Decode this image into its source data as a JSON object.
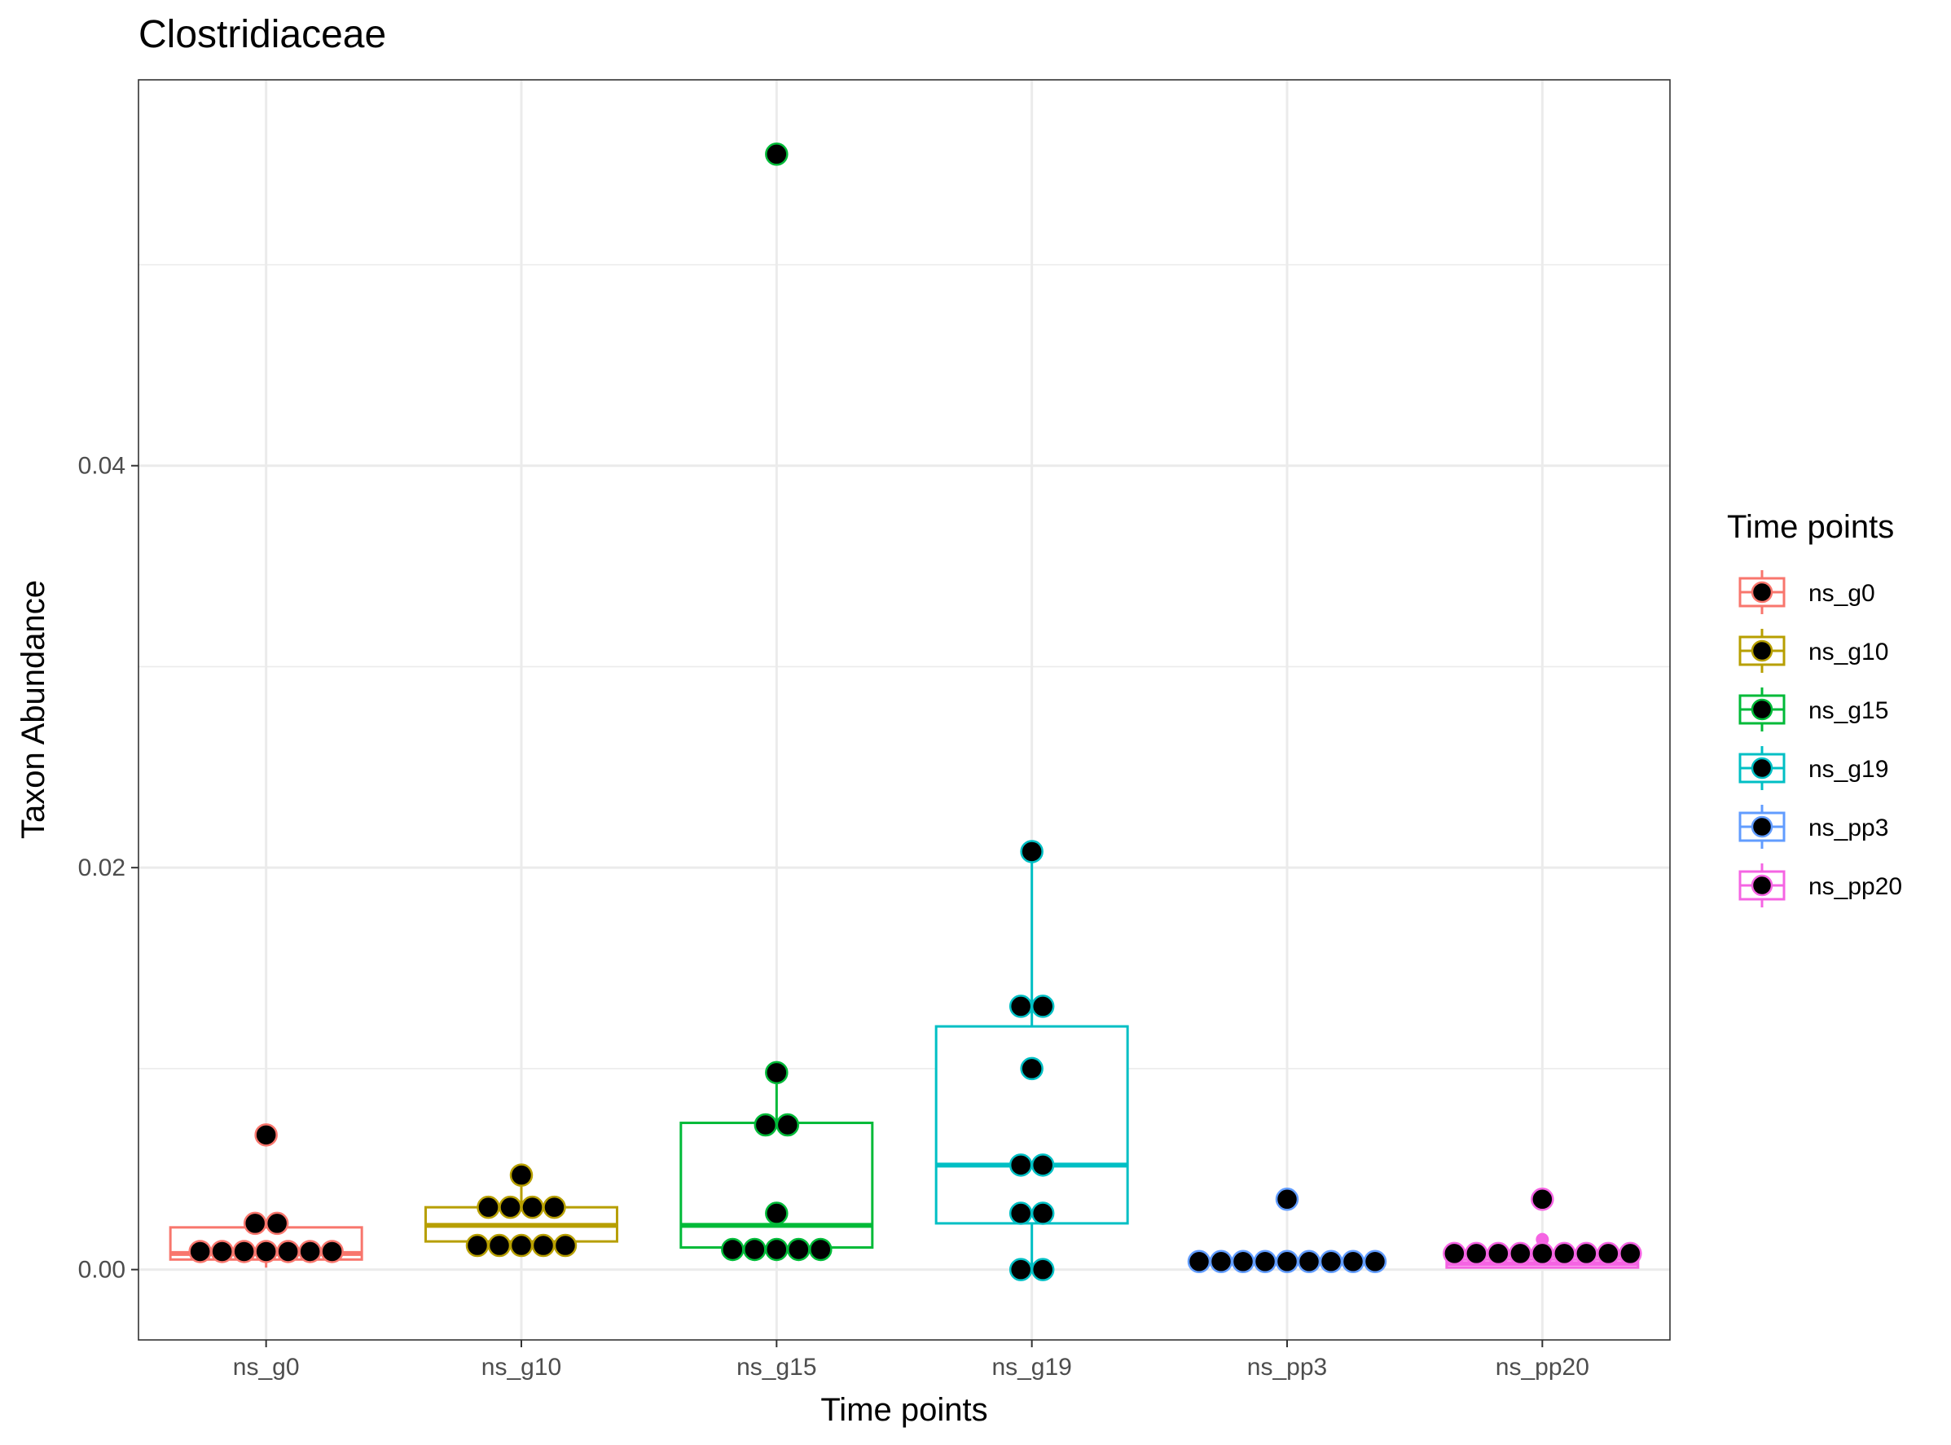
{
  "chart_data": {
    "type": "boxplot",
    "title": "Clostridiaceae",
    "xlabel": "Time points",
    "ylabel": "Taxon Abundance",
    "ylim": [
      -0.0035,
      0.0592
    ],
    "y_ticks": [
      0.0,
      0.02,
      0.04
    ],
    "y_tick_labels": [
      "0.00",
      "0.02",
      "0.04"
    ],
    "grid": true,
    "legend": {
      "title": "Time points",
      "position": "right"
    },
    "categories": [
      "ns_g0",
      "ns_g10",
      "ns_g15",
      "ns_g19",
      "ns_pp3",
      "ns_pp20"
    ],
    "series": [
      {
        "name": "ns_g0",
        "color": "#F8766D",
        "box": {
          "lower_whisker": 0.0001,
          "q1": 0.0005,
          "median": 0.0008,
          "q3": 0.0021,
          "upper_whisker": 0.0024
        },
        "outliers": [
          0.0067
        ],
        "points": [
          0.0009,
          0.0009,
          0.0009,
          0.0009,
          0.0009,
          0.0009,
          0.0009,
          0.0023,
          0.0023,
          0.0067
        ]
      },
      {
        "name": "ns_g10",
        "color": "#B79F00",
        "box": {
          "lower_whisker": 0.0011,
          "q1": 0.0014,
          "median": 0.0022,
          "q3": 0.0031,
          "upper_whisker": 0.0047
        },
        "outliers": [],
        "points": [
          0.0012,
          0.0012,
          0.0012,
          0.0012,
          0.0012,
          0.0031,
          0.0031,
          0.0031,
          0.0031,
          0.0047
        ]
      },
      {
        "name": "ns_g15",
        "color": "#00BA38",
        "box": {
          "lower_whisker": 0.0009,
          "q1": 0.0011,
          "median": 0.0022,
          "q3": 0.0073,
          "upper_whisker": 0.0098
        },
        "outliers": [
          0.0555
        ],
        "points": [
          0.001,
          0.001,
          0.001,
          0.001,
          0.001,
          0.0028,
          0.0072,
          0.0072,
          0.0098,
          0.0555
        ]
      },
      {
        "name": "ns_g19",
        "color": "#00BFC4",
        "box": {
          "lower_whisker": 0.0,
          "q1": 0.0023,
          "median": 0.0052,
          "q3": 0.0121,
          "upper_whisker": 0.0208
        },
        "outliers": [],
        "points": [
          0.0,
          0.0,
          0.0028,
          0.0028,
          0.0052,
          0.0052,
          0.01,
          0.0131,
          0.0131,
          0.0208
        ]
      },
      {
        "name": "ns_pp3",
        "color": "#619CFF",
        "box": {
          "lower_whisker": 0.0003,
          "q1": 0.0003,
          "median": 0.0004,
          "q3": 0.0004,
          "upper_whisker": 0.0004
        },
        "outliers": [
          0.0035
        ],
        "points": [
          0.0004,
          0.0004,
          0.0004,
          0.0004,
          0.0004,
          0.0004,
          0.0004,
          0.0004,
          0.0004,
          0.0035
        ]
      },
      {
        "name": "ns_pp20",
        "color": "#F564E3",
        "box": {
          "lower_whisker": 0.0001,
          "q1": 0.0001,
          "median": 0.0003,
          "q3": 0.0005,
          "upper_whisker": 0.0008
        },
        "outliers": [
          0.0015,
          0.0035
        ],
        "points": [
          0.0008,
          0.0008,
          0.0008,
          0.0008,
          0.0008,
          0.0008,
          0.0008,
          0.0008,
          0.0008,
          0.0035
        ]
      }
    ]
  }
}
